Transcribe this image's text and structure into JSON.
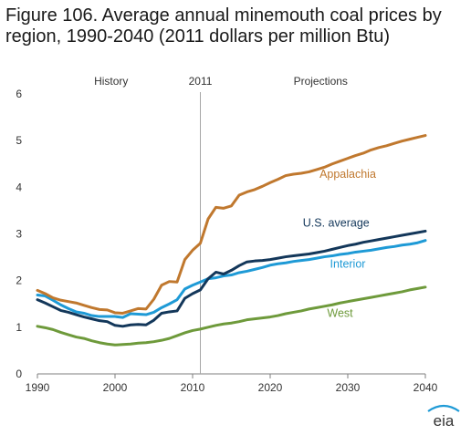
{
  "title": "Figure 106. Average annual minemouth coal prices by region, 1990-2040 (2011 dollars per million Btu)",
  "logo_text": "eia",
  "colors": {
    "appalachia": "#C0782E",
    "us_average": "#13375A",
    "interior": "#1E9AD6",
    "west": "#6E9A3B",
    "axis": "#7f7f7f",
    "divider": "#a6a6a6"
  },
  "chart_data": {
    "type": "line",
    "title": "Figure 106. Average annual minemouth coal prices by region, 1990-2040 (2011 dollars per million Btu)",
    "xlabel": "",
    "ylabel": "",
    "xlim": [
      1990,
      2040
    ],
    "ylim": [
      0,
      6
    ],
    "x_ticks": [
      1990,
      2000,
      2010,
      2020,
      2030,
      2040
    ],
    "y_ticks": [
      0,
      1,
      2,
      3,
      4,
      5,
      6
    ],
    "grid": false,
    "divider_year": 2011,
    "region_labels": {
      "history": "History",
      "divider": "2011",
      "projections": "Projections"
    },
    "x": [
      1990,
      1991,
      1992,
      1993,
      1994,
      1995,
      1996,
      1997,
      1998,
      1999,
      2000,
      2001,
      2002,
      2003,
      2004,
      2005,
      2006,
      2007,
      2008,
      2009,
      2010,
      2011,
      2012,
      2013,
      2014,
      2015,
      2016,
      2017,
      2018,
      2019,
      2020,
      2021,
      2022,
      2023,
      2024,
      2025,
      2026,
      2027,
      2028,
      2029,
      2030,
      2031,
      2032,
      2033,
      2034,
      2035,
      2036,
      2037,
      2038,
      2039,
      2040
    ],
    "series": [
      {
        "name": "Appalachia",
        "key": "appalachia",
        "values": [
          1.79,
          1.72,
          1.63,
          1.58,
          1.55,
          1.52,
          1.47,
          1.42,
          1.38,
          1.37,
          1.31,
          1.3,
          1.35,
          1.4,
          1.39,
          1.6,
          1.9,
          1.98,
          1.97,
          2.45,
          2.65,
          2.8,
          3.32,
          3.57,
          3.55,
          3.6,
          3.83,
          3.9,
          3.95,
          4.02,
          4.1,
          4.17,
          4.25,
          4.28,
          4.3,
          4.33,
          4.38,
          4.43,
          4.5,
          4.56,
          4.62,
          4.68,
          4.73,
          4.8,
          4.85,
          4.89,
          4.94,
          4.99,
          5.03,
          5.07,
          5.11
        ]
      },
      {
        "name": "U.S. average",
        "key": "us_average",
        "values": [
          1.59,
          1.52,
          1.44,
          1.36,
          1.32,
          1.27,
          1.22,
          1.18,
          1.14,
          1.12,
          1.04,
          1.02,
          1.05,
          1.06,
          1.05,
          1.15,
          1.3,
          1.33,
          1.35,
          1.62,
          1.72,
          1.8,
          2.04,
          2.18,
          2.14,
          2.22,
          2.32,
          2.4,
          2.42,
          2.43,
          2.45,
          2.48,
          2.51,
          2.53,
          2.55,
          2.57,
          2.6,
          2.63,
          2.67,
          2.71,
          2.75,
          2.78,
          2.82,
          2.85,
          2.88,
          2.91,
          2.94,
          2.97,
          3.0,
          3.03,
          3.06
        ]
      },
      {
        "name": "Interior",
        "key": "interior",
        "values": [
          1.69,
          1.67,
          1.58,
          1.48,
          1.4,
          1.33,
          1.3,
          1.25,
          1.23,
          1.23,
          1.23,
          1.21,
          1.29,
          1.28,
          1.27,
          1.32,
          1.42,
          1.5,
          1.59,
          1.82,
          1.9,
          1.97,
          2.04,
          2.06,
          2.1,
          2.12,
          2.17,
          2.2,
          2.24,
          2.28,
          2.33,
          2.36,
          2.38,
          2.41,
          2.43,
          2.45,
          2.48,
          2.51,
          2.53,
          2.56,
          2.58,
          2.61,
          2.63,
          2.65,
          2.68,
          2.71,
          2.73,
          2.76,
          2.78,
          2.81,
          2.86
        ]
      },
      {
        "name": "West",
        "key": "west",
        "values": [
          1.02,
          0.99,
          0.95,
          0.89,
          0.84,
          0.79,
          0.76,
          0.71,
          0.67,
          0.64,
          0.62,
          0.63,
          0.64,
          0.66,
          0.67,
          0.69,
          0.72,
          0.76,
          0.82,
          0.88,
          0.93,
          0.96,
          1.0,
          1.04,
          1.07,
          1.09,
          1.12,
          1.16,
          1.18,
          1.2,
          1.22,
          1.25,
          1.29,
          1.32,
          1.35,
          1.39,
          1.42,
          1.45,
          1.48,
          1.52,
          1.55,
          1.58,
          1.61,
          1.64,
          1.67,
          1.7,
          1.73,
          1.76,
          1.8,
          1.83,
          1.86
        ]
      }
    ]
  }
}
